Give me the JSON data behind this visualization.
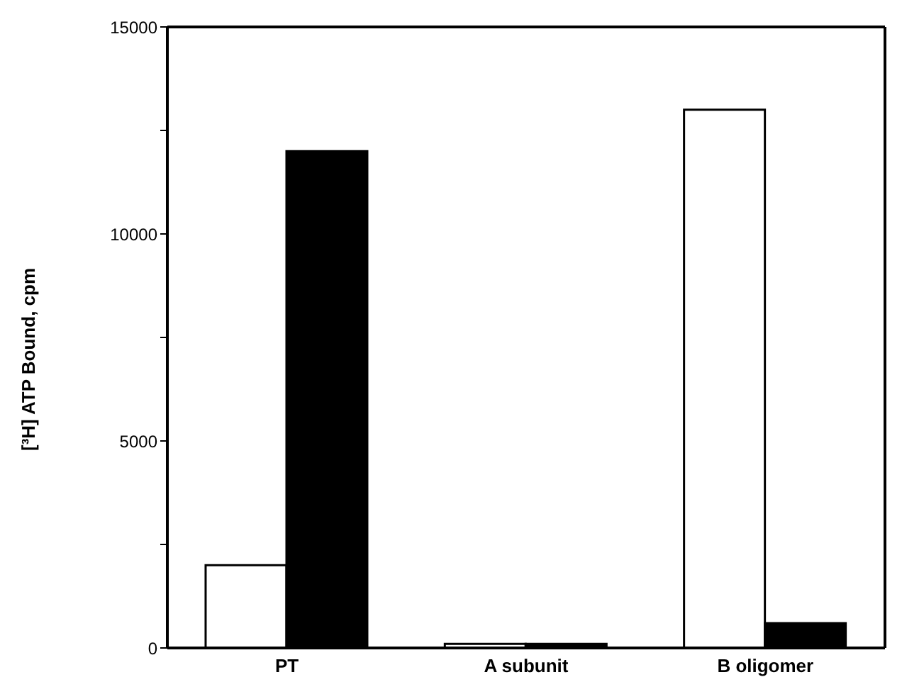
{
  "chart_data": {
    "type": "bar",
    "ylabel": "[³H] ATP Bound, cpm",
    "categories": [
      "PT",
      "A subunit",
      "B oligomer"
    ],
    "series": [
      {
        "color": "#ffffff",
        "values": [
          2000,
          100,
          13000
        ]
      },
      {
        "color": "#000000",
        "values": [
          12000,
          100,
          600
        ]
      }
    ],
    "ylim": [
      0,
      15000
    ],
    "yticks": [
      0,
      {
        "value": 2500,
        "label": null
      },
      5000,
      {
        "value": 7500,
        "label": null
      },
      10000,
      {
        "value": 12500,
        "label": null
      },
      15000
    ],
    "grid": false,
    "legend": false
  }
}
